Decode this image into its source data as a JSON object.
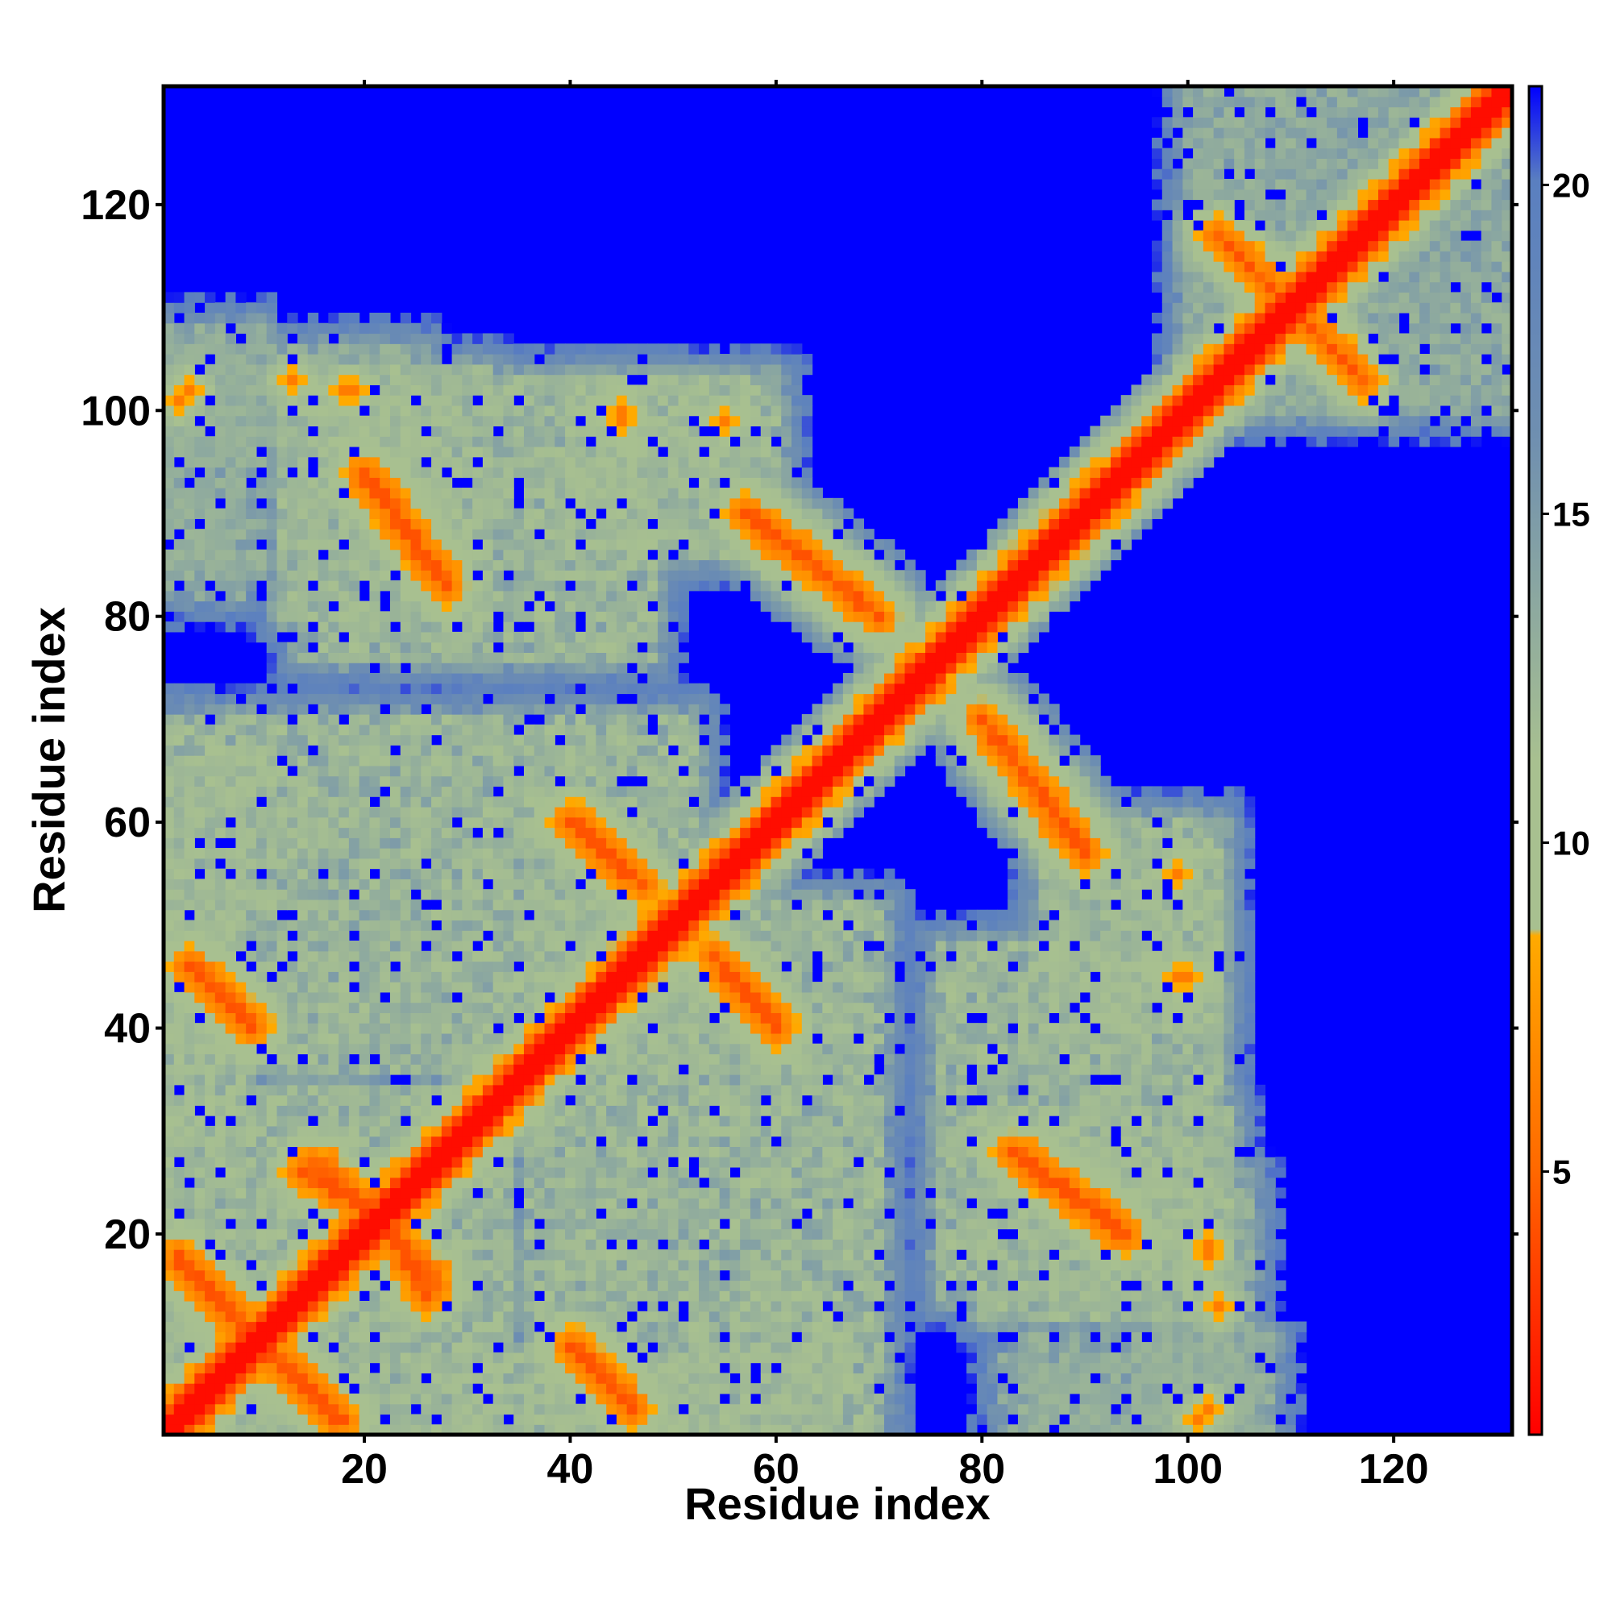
{
  "chart_data": {
    "type": "heatmap",
    "title": "",
    "xlabel": "Residue index",
    "ylabel": "Residue index",
    "n_residues": 131,
    "xlim": [
      1,
      131
    ],
    "ylim": [
      1,
      131
    ],
    "x_ticks": [
      20,
      40,
      60,
      80,
      100,
      120
    ],
    "y_ticks": [
      20,
      40,
      60,
      80,
      100,
      120
    ],
    "colorbar": {
      "range": [
        1,
        21.5
      ],
      "ticks": [
        5,
        10,
        15,
        20
      ],
      "stops": [
        {
          "value": 1,
          "color": "#ff0000"
        },
        {
          "value": 5,
          "color": "#ff6a00"
        },
        {
          "value": 8.5,
          "color": "#ffaa00"
        },
        {
          "value": 8.6,
          "color": "#a8c090"
        },
        {
          "value": 11,
          "color": "#a8c090"
        },
        {
          "value": 16,
          "color": "#6f8fb0"
        },
        {
          "value": 20,
          "color": "#5a7fc0"
        },
        {
          "value": 21.5,
          "color": "#0000ff"
        }
      ],
      "background_color": "#0000ff"
    },
    "description": "Symmetric residue-residue distance map; red main diagonal (distance ~1-4), orange contacts, green/gray-blue mid-range, blue for distances beyond 21.",
    "diagonal_band": {
      "width": 2.5,
      "value": 2
    },
    "contact_segments": [
      {
        "from": [
          2,
          18
        ],
        "to": [
          10,
          9
        ],
        "type": "antiparallel"
      },
      {
        "from": [
          10,
          9
        ],
        "to": [
          17,
          2
        ],
        "type": "antiparallel"
      },
      {
        "from": [
          3,
          46
        ],
        "to": [
          9,
          40
        ],
        "type": "antiparallel"
      },
      {
        "from": [
          15,
          27
        ],
        "to": [
          23,
          20
        ],
        "type": "antiparallel"
      },
      {
        "from": [
          21,
          23
        ],
        "to": [
          26,
          14
        ],
        "type": "antiparallel"
      },
      {
        "from": [
          20,
          94
        ],
        "to": [
          28,
          83
        ],
        "type": "antiparallel"
      },
      {
        "from": [
          40,
          60
        ],
        "to": [
          47,
          54
        ],
        "type": "antiparallel"
      },
      {
        "from": [
          54,
          47
        ],
        "to": [
          60,
          40
        ],
        "type": "antiparallel"
      },
      {
        "from": [
          40,
          9
        ],
        "to": [
          46,
          3
        ],
        "type": "antiparallel"
      },
      {
        "from": [
          57,
          90
        ],
        "to": [
          70,
          80
        ],
        "type": "antiparallel"
      },
      {
        "from": [
          80,
          70
        ],
        "to": [
          90,
          57
        ],
        "type": "antiparallel"
      },
      {
        "from": [
          83,
          28
        ],
        "to": [
          94,
          20
        ],
        "type": "antiparallel"
      },
      {
        "from": [
          103,
          104
        ],
        "to": [
          116,
          117
        ],
        "type": "parallel"
      },
      {
        "from": [
          108,
          112
        ],
        "to": [
          117,
          103
        ],
        "type": "antiparallel"
      }
    ],
    "contact_points": [
      [
        3,
        102
      ],
      [
        102,
        3
      ],
      [
        18,
        102
      ],
      [
        102,
        18
      ],
      [
        45,
        99
      ],
      [
        99,
        45
      ],
      [
        55,
        99
      ],
      [
        99,
        55
      ],
      [
        102,
        19
      ],
      [
        19,
        102
      ],
      [
        101,
        2
      ],
      [
        2,
        101
      ],
      [
        100,
        45
      ],
      [
        45,
        100
      ],
      [
        30,
        28
      ],
      [
        28,
        30
      ],
      [
        29,
        31
      ],
      [
        97,
        99
      ],
      [
        99,
        97
      ],
      [
        65,
        66
      ],
      [
        13,
        103
      ]
    ],
    "regions": [
      {
        "x": [
          1,
          34
        ],
        "y": [
          1,
          34
        ],
        "value": 13
      },
      {
        "x": [
          1,
          52
        ],
        "y": [
          36,
          70
        ],
        "value": 13
      },
      {
        "x": [
          36,
          70
        ],
        "y": [
          1,
          52
        ],
        "value": 13
      },
      {
        "x": [
          1,
          8
        ],
        "y": [
          1,
          66
        ],
        "value": 13
      },
      {
        "x": [
          1,
          66
        ],
        "y": [
          1,
          8
        ],
        "value": 13
      },
      {
        "x": [
          1,
          10
        ],
        "y": [
          84,
          108
        ],
        "value": 14
      },
      {
        "x": [
          84,
          108
        ],
        "y": [
          1,
          10
        ],
        "value": 14
      },
      {
        "x": [
          12,
          32
        ],
        "y": [
          80,
          104
        ],
        "value": 13
      },
      {
        "x": [
          80,
          104
        ],
        "y": [
          12,
          32
        ],
        "value": 13
      },
      {
        "x": [
          40,
          60
        ],
        "y": [
          86,
          103
        ],
        "value": 13
      },
      {
        "x": [
          86,
          103
        ],
        "y": [
          40,
          60
        ],
        "value": 13
      },
      {
        "x": [
          76,
          103
        ],
        "y": [
          14,
          48
        ],
        "value": 13
      },
      {
        "x": [
          14,
          48
        ],
        "y": [
          76,
          103
        ],
        "value": 13
      },
      {
        "x": [
          82,
          104
        ],
        "y": [
          1,
          8
        ],
        "value": 14
      },
      {
        "x": [
          97,
          106
        ],
        "y": [
          1,
          26
        ],
        "value": 14
      },
      {
        "x": [
          1,
          26
        ],
        "y": [
          97,
          106
        ],
        "value": 14
      },
      {
        "x": [
          92,
          103
        ],
        "y": [
          40,
          58
        ],
        "value": 13
      },
      {
        "x": [
          40,
          58
        ],
        "y": [
          92,
          103
        ],
        "value": 13
      },
      {
        "x": [
          100,
          131
        ],
        "y": [
          100,
          131
        ],
        "value": 14
      }
    ]
  }
}
